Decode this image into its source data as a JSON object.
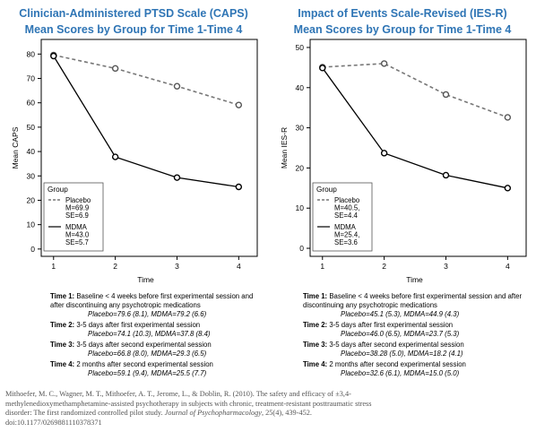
{
  "chart_data": [
    {
      "type": "line",
      "title_line1": "Clinician-Administered PTSD Scale (CAPS)",
      "title_line2": "Mean Scores by Group for Time 1-Time 4",
      "xlabel": "Time",
      "ylabel": "Mean CAPS",
      "x": [
        1,
        2,
        3,
        4
      ],
      "xlim": [
        0.8,
        4.3
      ],
      "ylim": [
        -3,
        86
      ],
      "yticks": [
        0,
        10,
        20,
        30,
        40,
        50,
        60,
        70,
        80
      ],
      "grid": false,
      "legend_position": "bottom-left",
      "legend_title": "Group",
      "series": [
        {
          "name": "Placebo",
          "legend_lines": [
            "Placebo",
            "M=69.9",
            "SE=6.9"
          ],
          "values": [
            79.6,
            74.1,
            66.8,
            59.1
          ],
          "style": "dashed",
          "color": "#777777"
        },
        {
          "name": "MDMA",
          "legend_lines": [
            "MDMA",
            "M=43.0",
            "SE=5.7"
          ],
          "values": [
            79.2,
            37.8,
            29.3,
            25.5
          ],
          "style": "solid",
          "color": "#000000"
        }
      ]
    },
    {
      "type": "line",
      "title_line1": "Impact of Events Scale-Revised (IES-R)",
      "title_line2": "Mean Scores by Group for Time 1-Time 4",
      "xlabel": "Time",
      "ylabel": "Mean IES-R",
      "x": [
        1,
        2,
        3,
        4
      ],
      "xlim": [
        0.8,
        4.3
      ],
      "ylim": [
        -2,
        52
      ],
      "yticks": [
        0,
        10,
        20,
        30,
        40,
        50
      ],
      "grid": false,
      "legend_position": "bottom-left",
      "legend_title": "Group",
      "series": [
        {
          "name": "Placebo",
          "legend_lines": [
            "Placebo",
            "M=40.5,",
            "SE=4.4"
          ],
          "values": [
            45.1,
            46.0,
            38.28,
            32.6
          ],
          "style": "dashed",
          "color": "#777777"
        },
        {
          "name": "MDMA",
          "legend_lines": [
            "MDMA",
            "M=25.4,",
            "SE=3.6"
          ],
          "values": [
            44.9,
            23.7,
            18.2,
            15.0
          ],
          "style": "solid",
          "color": "#000000"
        }
      ]
    }
  ],
  "notes_left": [
    {
      "label": "Time 1:",
      "desc": "Baseline < 4 weeks before first experimental session and after discontinuing any psychotropic medications",
      "vals": "Placebo=79.6 (8.1), MDMA=79.2 (6.6)"
    },
    {
      "label": "Time 2:",
      "desc": "3-5 days after first experimental session",
      "vals": "Placebo=74.1 (10.3), MDMA=37.8 (8.4)"
    },
    {
      "label": "Time 3:",
      "desc": "3-5 days after second experimental session",
      "vals": "Placebo=66.8 (8.0), MDMA=29.3 (6.5)"
    },
    {
      "label": "Time 4:",
      "desc": "2 months after second experimental session",
      "vals": "Placebo=59.1 (9.4), MDMA=25.5 (7.7)"
    }
  ],
  "notes_right": [
    {
      "label": "Time 1:",
      "desc": "Baseline < 4 weeks before first experimental session and after discontinuing any psychotropic medications",
      "vals": "Placebo=45.1 (5.3), MDMA=44.9 (4.3)"
    },
    {
      "label": "Time 2:",
      "desc": "3-5 days after first experimental session",
      "vals": "Placebo=46.0 (6.5), MDMA=23.7 (5.3)"
    },
    {
      "label": "Time 3:",
      "desc": "3-5 days after second experimental session",
      "vals": "Placebo=38.28 (5.0), MDMA=18.2 (4.1)"
    },
    {
      "label": "Time 4:",
      "desc": "2 months after second experimental session",
      "vals": "Placebo=32.6 (6.1), MDMA=15.0 (5.0)"
    }
  ],
  "citation": {
    "text": "Mithoefer, M. C., Wagner, M. T., Mithoefer, A. T., Jerome, L., & Doblin, R. (2010). The safety and efficacy of ±3,4-methylenedioxymethamphetamine-assisted psychotherapy in subjects with chronic, treatment-resistant posttraumatic stress disorder: The first randomized controlled pilot study.",
    "journal": "Journal of Psychopharmacology",
    "rest": ", 25(4), 439-452. doi:10.1177/0269881110378371"
  }
}
